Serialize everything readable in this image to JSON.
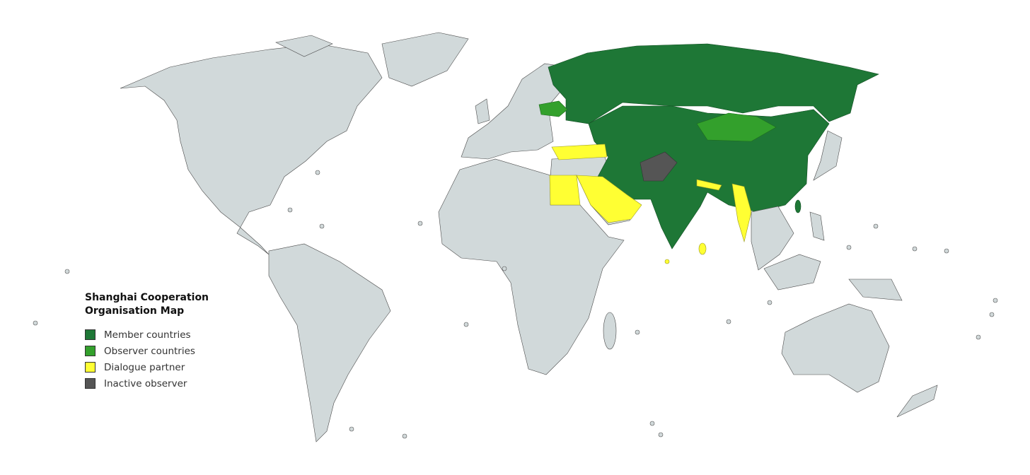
{
  "legend": {
    "title_line1": "Shanghai Cooperation",
    "title_line2": "Organisation Map",
    "items": [
      {
        "label": "Member countries",
        "color": "#1e7736"
      },
      {
        "label": "Observer countries",
        "color": "#33a02c"
      },
      {
        "label": "Dialogue partner",
        "color": "#ffff33"
      },
      {
        "label": "Inactive observer",
        "color": "#555555"
      }
    ]
  },
  "colors": {
    "land": "#d1d9da",
    "background": "#ffffff"
  }
}
